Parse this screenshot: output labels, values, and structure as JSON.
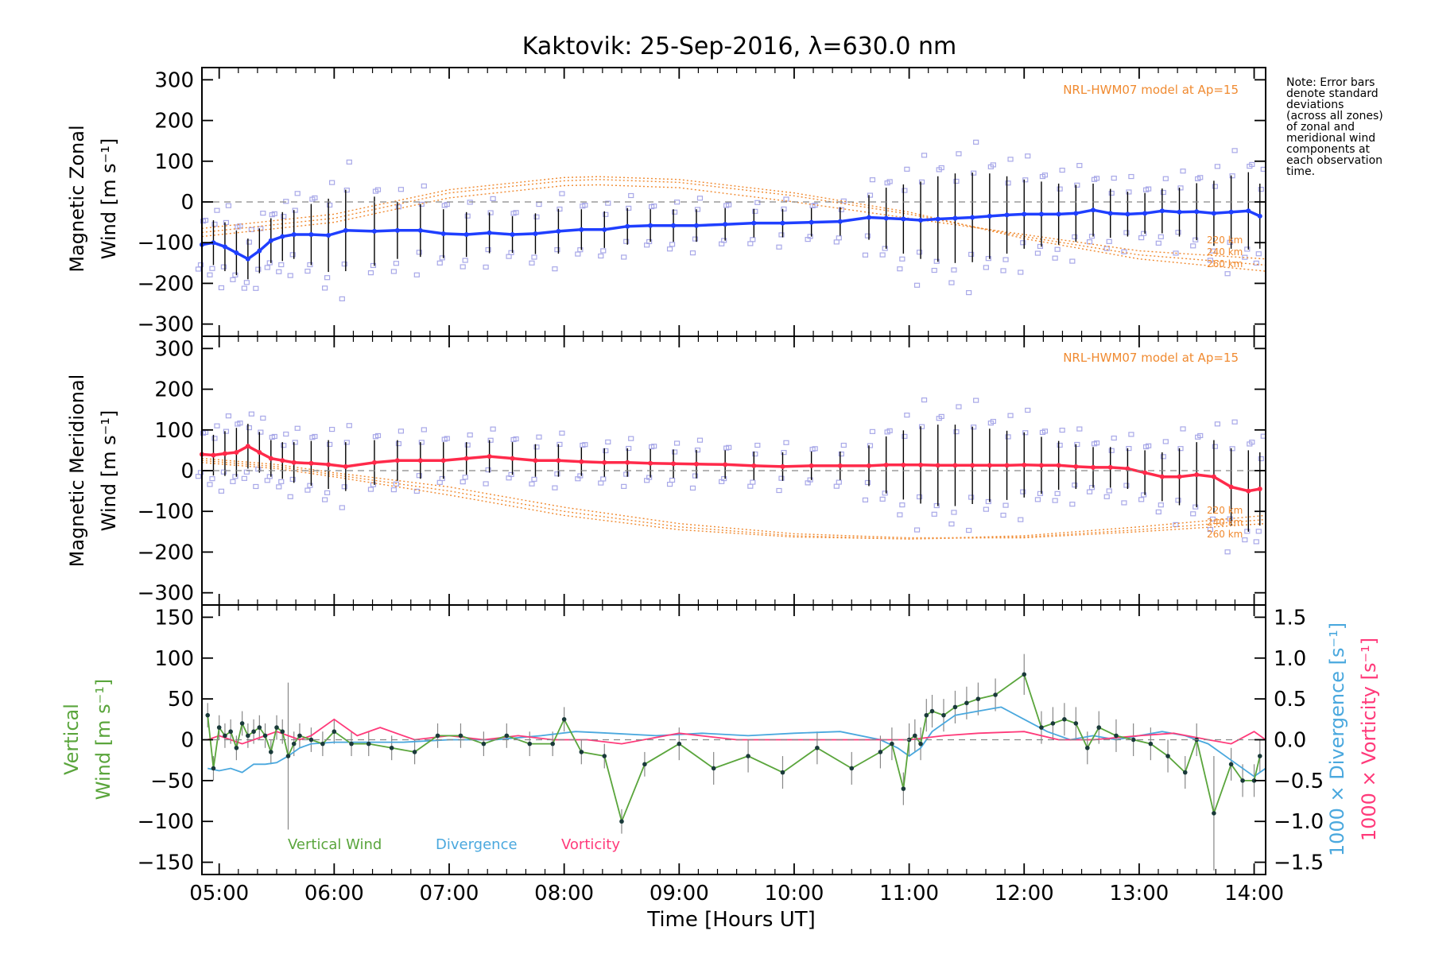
{
  "chart_data": {
    "type": "line",
    "title": "Kaktovik: 25-Sep-2016, λ=630.0 nm",
    "note": [
      "Note: Error bars",
      "denote standard",
      "deviations",
      "(across all zones)",
      "of zonal and",
      "meridional wind",
      "components at",
      "each observation",
      "time."
    ],
    "xlabel": "Time [Hours UT]",
    "x_ticks": [
      "05:00",
      "06:00",
      "07:00",
      "08:00",
      "09:00",
      "10:00",
      "11:00",
      "12:00",
      "13:00",
      "14:00"
    ],
    "xlim": [
      4.85,
      14.1
    ],
    "colors": {
      "zonal": "#1f3fff",
      "meridional": "#ff2a4a",
      "model": "#f08a30",
      "scatter": "#a8a8e8",
      "vertical": "#5aa53c",
      "divergence": "#4aa8de",
      "vorticity": "#ff3a7a"
    },
    "panels": [
      {
        "id": "zonal",
        "ylabel": [
          "Magnetic Zonal",
          "Wind [m s⁻¹]"
        ],
        "ylim": [
          -330,
          330
        ],
        "y_ticks": [
          -300,
          -200,
          -100,
          0,
          100,
          200,
          300
        ],
        "model_label": "NRL-HWM07 model at Ap=15",
        "model_alt_labels": [
          "220 km",
          "240 km",
          "260 km"
        ],
        "model_series": [
          {
            "x": [
              4.85,
              6.0,
              7.0,
              8.0,
              8.3,
              9.0,
              10.0,
              11.0,
              12.0,
              13.0,
              14.1
            ],
            "y": [
              -85,
              -50,
              10,
              40,
              42,
              35,
              0,
              -40,
              -80,
              -120,
              -140
            ]
          },
          {
            "x": [
              4.85,
              6.0,
              7.0,
              8.0,
              8.3,
              9.0,
              10.0,
              11.0,
              12.0,
              13.0,
              14.1
            ],
            "y": [
              -75,
              -40,
              22,
              52,
              55,
              48,
              15,
              -30,
              -85,
              -130,
              -155
            ]
          },
          {
            "x": [
              4.85,
              6.0,
              7.0,
              8.0,
              8.3,
              9.0,
              10.0,
              11.0,
              12.0,
              13.0,
              14.1
            ],
            "y": [
              -65,
              -30,
              30,
              60,
              62,
              55,
              22,
              -25,
              -90,
              -140,
              -170
            ]
          }
        ],
        "series": {
          "x": [
            4.85,
            4.95,
            5.05,
            5.15,
            5.25,
            5.35,
            5.45,
            5.55,
            5.65,
            5.8,
            5.95,
            6.1,
            6.35,
            6.55,
            6.75,
            6.95,
            7.15,
            7.35,
            7.55,
            7.75,
            7.95,
            8.15,
            8.35,
            8.55,
            8.75,
            8.95,
            9.15,
            9.4,
            9.65,
            9.9,
            10.15,
            10.4,
            10.65,
            10.8,
            10.95,
            11.1,
            11.25,
            11.4,
            11.55,
            11.7,
            11.85,
            12.0,
            12.15,
            12.3,
            12.45,
            12.6,
            12.75,
            12.9,
            13.05,
            13.2,
            13.35,
            13.5,
            13.65,
            13.8,
            13.95,
            14.05
          ],
          "y": [
            -105,
            -100,
            -110,
            -125,
            -140,
            -120,
            -95,
            -85,
            -80,
            -80,
            -82,
            -70,
            -72,
            -70,
            -70,
            -78,
            -80,
            -76,
            -80,
            -78,
            -72,
            -68,
            -68,
            -60,
            -58,
            -58,
            -58,
            -55,
            -52,
            -52,
            -50,
            -48,
            -38,
            -40,
            -42,
            -45,
            -42,
            -40,
            -38,
            -35,
            -32,
            -30,
            -30,
            -30,
            -28,
            -20,
            -28,
            -30,
            -28,
            -22,
            -25,
            -24,
            -28,
            -25,
            -22,
            -35
          ],
          "err": [
            50,
            55,
            60,
            55,
            50,
            55,
            55,
            60,
            60,
            75,
            90,
            100,
            85,
            70,
            65,
            60,
            55,
            50,
            45,
            50,
            55,
            50,
            45,
            45,
            40,
            40,
            40,
            40,
            35,
            35,
            35,
            35,
            55,
            75,
            85,
            95,
            105,
            110,
            110,
            105,
            95,
            85,
            80,
            75,
            70,
            65,
            60,
            55,
            50,
            55,
            60,
            70,
            80,
            90,
            95,
            80
          ]
        }
      },
      {
        "id": "meridional",
        "ylabel": [
          "Magnetic Meridional",
          "Wind [m s⁻¹]"
        ],
        "ylim": [
          -330,
          330
        ],
        "y_ticks": [
          -300,
          -200,
          -100,
          0,
          100,
          200,
          300
        ],
        "model_label": "NRL-HWM07 model at Ap=15",
        "model_alt_labels": [
          "220 km",
          "240 km",
          "260 km"
        ],
        "model_series": [
          {
            "x": [
              4.85,
              5.5,
              6.0,
              7.0,
              8.0,
              9.0,
              10.0,
              11.0,
              12.0,
              13.0,
              14.1
            ],
            "y": [
              30,
              15,
              -5,
              -40,
              -90,
              -130,
              -155,
              -165,
              -165,
              -150,
              -130
            ]
          },
          {
            "x": [
              4.85,
              5.5,
              6.0,
              7.0,
              8.0,
              9.0,
              10.0,
              11.0,
              12.0,
              13.0,
              14.1
            ],
            "y": [
              25,
              10,
              -10,
              -50,
              -100,
              -138,
              -160,
              -168,
              -163,
              -145,
              -120
            ]
          },
          {
            "x": [
              4.85,
              5.5,
              6.0,
              7.0,
              8.0,
              9.0,
              10.0,
              11.0,
              12.0,
              13.0,
              14.1
            ],
            "y": [
              20,
              5,
              -15,
              -60,
              -110,
              -145,
              -163,
              -168,
              -160,
              -138,
              -110
            ]
          }
        ],
        "series": {
          "x": [
            4.85,
            4.95,
            5.05,
            5.15,
            5.25,
            5.35,
            5.45,
            5.55,
            5.65,
            5.8,
            5.95,
            6.1,
            6.35,
            6.55,
            6.75,
            6.95,
            7.15,
            7.35,
            7.55,
            7.75,
            7.95,
            8.15,
            8.35,
            8.55,
            8.75,
            8.95,
            9.15,
            9.4,
            9.65,
            9.9,
            10.15,
            10.4,
            10.65,
            10.8,
            10.95,
            11.1,
            11.25,
            11.4,
            11.55,
            11.7,
            11.85,
            12.0,
            12.15,
            12.3,
            12.45,
            12.6,
            12.75,
            12.9,
            13.05,
            13.2,
            13.35,
            13.5,
            13.65,
            13.8,
            13.95,
            14.05
          ],
          "y": [
            40,
            38,
            42,
            45,
            60,
            45,
            30,
            25,
            20,
            18,
            15,
            10,
            20,
            25,
            25,
            25,
            30,
            35,
            30,
            25,
            25,
            22,
            20,
            20,
            18,
            17,
            16,
            15,
            12,
            10,
            12,
            12,
            12,
            14,
            14,
            14,
            13,
            13,
            13,
            13,
            13,
            14,
            13,
            13,
            10,
            8,
            8,
            5,
            -5,
            -15,
            -15,
            -10,
            -15,
            -40,
            -50,
            -45
          ],
          "err": [
            45,
            50,
            55,
            60,
            55,
            50,
            45,
            45,
            50,
            55,
            60,
            60,
            55,
            50,
            45,
            45,
            40,
            40,
            40,
            40,
            40,
            35,
            35,
            35,
            35,
            35,
            35,
            35,
            35,
            35,
            35,
            35,
            50,
            70,
            85,
            95,
            100,
            100,
            95,
            90,
            85,
            80,
            70,
            60,
            55,
            50,
            50,
            50,
            55,
            60,
            70,
            80,
            90,
            95,
            100,
            90
          ]
        }
      },
      {
        "id": "vertical",
        "ylabel_vertical": "Vertical",
        "ylabel_wind": "Wind [m s⁻¹]",
        "ylim": [
          -165,
          165
        ],
        "y_ticks": [
          -150,
          -100,
          -50,
          0,
          50,
          100,
          150
        ],
        "y2_label_divergence": "1000 × Divergence [s⁻¹]",
        "y2_label_vorticity": "1000 × Vorticity [s⁻¹]",
        "y2lim": [
          -1.65,
          1.65
        ],
        "y2_ticks": [
          "-1.5",
          "-1.0",
          "-0.5",
          "0.0",
          "0.5",
          "1.0",
          "1.5"
        ],
        "legend": [
          "Vertical Wind",
          "Divergence",
          "Vorticity"
        ],
        "vertical_wind": {
          "x": [
            4.9,
            4.95,
            5.0,
            5.05,
            5.1,
            5.15,
            5.2,
            5.25,
            5.3,
            5.35,
            5.4,
            5.45,
            5.5,
            5.55,
            5.6,
            5.65,
            5.7,
            5.8,
            5.9,
            6.0,
            6.15,
            6.3,
            6.5,
            6.7,
            6.9,
            7.1,
            7.3,
            7.5,
            7.7,
            7.9,
            8.0,
            8.15,
            8.35,
            8.5,
            8.7,
            9.0,
            9.3,
            9.6,
            9.9,
            10.2,
            10.5,
            10.75,
            10.85,
            10.95,
            11.0,
            11.05,
            11.1,
            11.15,
            11.2,
            11.3,
            11.4,
            11.5,
            11.6,
            11.75,
            12.0,
            12.15,
            12.25,
            12.35,
            12.45,
            12.55,
            12.65,
            12.8,
            12.95,
            13.1,
            13.25,
            13.4,
            13.5,
            13.65,
            13.8,
            13.9,
            14.0,
            14.05
          ],
          "y": [
            30,
            -35,
            15,
            5,
            10,
            -10,
            20,
            5,
            10,
            15,
            5,
            -15,
            15,
            10,
            -20,
            -5,
            5,
            0,
            -5,
            10,
            -5,
            -5,
            -10,
            -15,
            5,
            5,
            -5,
            5,
            -5,
            -5,
            25,
            -15,
            -20,
            -100,
            -30,
            -5,
            -35,
            -20,
            -40,
            -10,
            -35,
            -15,
            -5,
            -60,
            0,
            5,
            -5,
            30,
            35,
            30,
            40,
            45,
            50,
            55,
            80,
            15,
            20,
            25,
            20,
            -10,
            15,
            5,
            0,
            -5,
            -20,
            -40,
            0,
            -90,
            -30,
            -50,
            -50,
            -20
          ],
          "err": [
            15,
            15,
            15,
            15,
            15,
            15,
            15,
            15,
            15,
            15,
            15,
            15,
            15,
            15,
            90,
            15,
            15,
            15,
            15,
            15,
            15,
            15,
            15,
            15,
            15,
            15,
            15,
            15,
            15,
            15,
            15,
            15,
            15,
            15,
            15,
            20,
            20,
            20,
            20,
            20,
            20,
            20,
            20,
            20,
            20,
            20,
            20,
            20,
            20,
            20,
            20,
            20,
            20,
            20,
            25,
            20,
            20,
            20,
            20,
            20,
            20,
            20,
            20,
            20,
            20,
            20,
            20,
            70,
            20,
            20,
            20,
            20
          ]
        },
        "divergence": {
          "x": [
            4.9,
            5.0,
            5.1,
            5.2,
            5.3,
            5.4,
            5.5,
            5.6,
            5.7,
            5.8,
            6.0,
            6.3,
            6.6,
            7.0,
            7.4,
            7.8,
            8.1,
            8.4,
            8.8,
            9.2,
            9.6,
            10.0,
            10.4,
            10.75,
            10.9,
            11.0,
            11.1,
            11.2,
            11.4,
            11.6,
            11.8,
            12.0,
            12.2,
            12.4,
            12.6,
            12.8,
            13.0,
            13.2,
            13.4,
            13.6,
            13.8,
            14.0,
            14.1
          ],
          "y": [
            -0.35,
            -0.38,
            -0.35,
            -0.4,
            -0.3,
            -0.3,
            -0.28,
            -0.2,
            -0.1,
            -0.05,
            -0.03,
            -0.03,
            -0.03,
            0.0,
            0.0,
            0.05,
            0.1,
            0.08,
            0.05,
            0.08,
            0.05,
            0.08,
            0.1,
            0.0,
            -0.1,
            -0.2,
            -0.1,
            0.1,
            0.3,
            0.35,
            0.4,
            0.25,
            0.1,
            0.0,
            0.05,
            0.0,
            0.05,
            0.1,
            0.05,
            -0.05,
            -0.25,
            -0.45,
            -0.35
          ]
        },
        "vorticity": {
          "x": [
            4.9,
            5.0,
            5.1,
            5.2,
            5.3,
            5.4,
            5.5,
            5.6,
            5.7,
            5.8,
            6.0,
            6.2,
            6.4,
            6.7,
            7.0,
            7.3,
            7.6,
            7.9,
            8.2,
            8.5,
            9.0,
            9.5,
            10.0,
            10.5,
            10.8,
            11.0,
            11.3,
            11.6,
            12.0,
            12.3,
            12.6,
            13.0,
            13.3,
            13.6,
            13.8,
            14.0,
            14.1
          ],
          "y": [
            0.0,
            0.05,
            0.0,
            -0.05,
            0.0,
            0.05,
            0.1,
            0.05,
            0.0,
            0.05,
            0.25,
            0.05,
            0.15,
            0.0,
            0.05,
            0.0,
            0.05,
            0.0,
            0.0,
            -0.05,
            0.08,
            0.0,
            0.0,
            0.0,
            0.0,
            0.0,
            0.05,
            0.08,
            0.1,
            0.0,
            0.0,
            0.05,
            0.08,
            0.0,
            -0.05,
            0.1,
            0.0
          ]
        }
      }
    ]
  }
}
